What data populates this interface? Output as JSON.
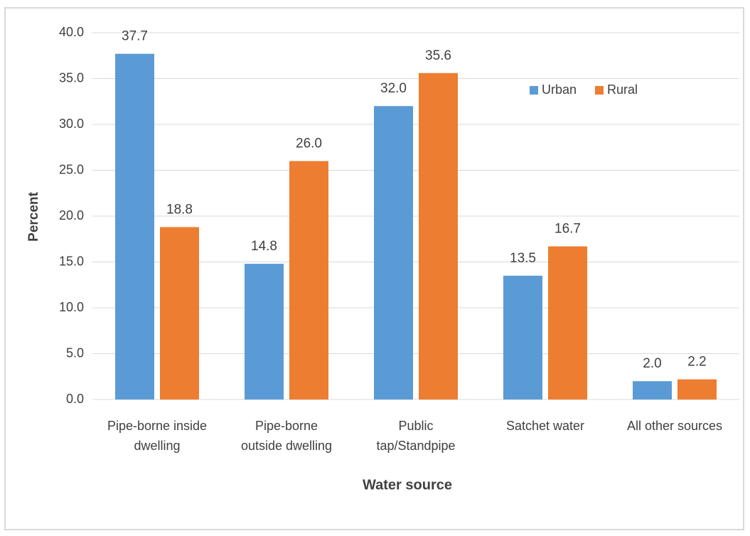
{
  "chart_data": {
    "type": "bar",
    "x_label": "Water source",
    "y_label": "Percent",
    "categories": [
      "Pipe-borne inside\ndwelling",
      "Pipe-borne\noutside dwelling",
      "Public\ntap/Standpipe",
      "Satchet water",
      "All other sources"
    ],
    "series": [
      {
        "name": "Urban",
        "color": "#5b9bd5",
        "values": [
          37.7,
          14.8,
          32.0,
          13.5,
          2.0
        ],
        "value_labels": [
          "37.7",
          "14.8",
          "32.0",
          "13.5",
          "2.0"
        ]
      },
      {
        "name": "Rural",
        "color": "#ed7d31",
        "values": [
          18.8,
          26.0,
          35.6,
          16.7,
          2.2
        ],
        "value_labels": [
          "18.8",
          "26.0",
          "35.6",
          "16.7",
          "2.2"
        ]
      }
    ],
    "ylim": [
      0,
      40
    ],
    "yticks": [
      {
        "value": 0,
        "label": "0.0"
      },
      {
        "value": 5,
        "label": "5.0"
      },
      {
        "value": 10,
        "label": "10.0"
      },
      {
        "value": 15,
        "label": "15.0"
      },
      {
        "value": 20,
        "label": "20.0"
      },
      {
        "value": 25,
        "label": "25.0"
      },
      {
        "value": 30,
        "label": "30.0"
      },
      {
        "value": 35,
        "label": "35.0"
      },
      {
        "value": 40,
        "label": "40.0"
      }
    ],
    "grid": true,
    "legend": "top-right"
  }
}
